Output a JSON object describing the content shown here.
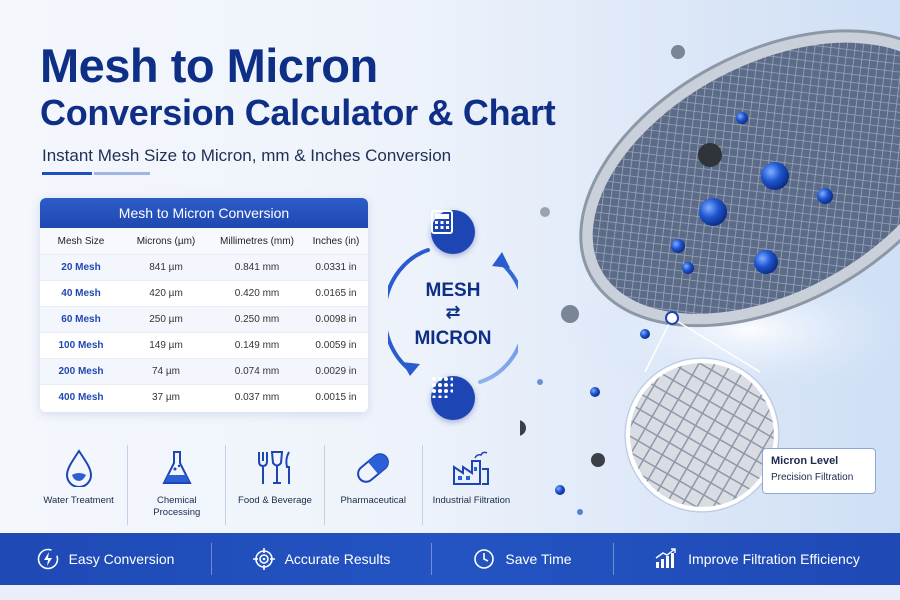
{
  "header": {
    "title_line1": "Mesh to Micron",
    "title_line2": "Conversion Calculator & Chart",
    "subtitle": "Instant Mesh Size to Micron, mm & Inches Conversion"
  },
  "table": {
    "title": "Mesh to Micron Conversion",
    "columns": [
      "Mesh Size",
      "Microns (µm)",
      "Millimetres (mm)",
      "Inches (in)"
    ],
    "rows": [
      [
        "20 Mesh",
        "841 µm",
        "0.841 mm",
        "0.0331 in"
      ],
      [
        "40 Mesh",
        "420 µm",
        "0.420 mm",
        "0.0165 in"
      ],
      [
        "60 Mesh",
        "250 µm",
        "0.250 mm",
        "0.0098 in"
      ],
      [
        "100 Mesh",
        "149 µm",
        "0.149 mm",
        "0.0059 in"
      ],
      [
        "200 Mesh",
        "74 µm",
        "0.074 mm",
        "0.0029 in"
      ],
      [
        "400 Mesh",
        "37 µm",
        "0.037 mm",
        "0.0015 in"
      ]
    ]
  },
  "cycle": {
    "top_word": "MESH",
    "swap_symbol": "⇄",
    "bottom_word": "MICRON",
    "top_icon": "calculator-icon",
    "bottom_icon": "dot-grid-icon"
  },
  "callout": {
    "line1": "Micron Level",
    "line2": "Precision Filtration"
  },
  "industries": [
    {
      "label": "Water Treatment",
      "icon": "water-drop-icon"
    },
    {
      "label": "Chemical\nProcessing",
      "icon": "flask-icon"
    },
    {
      "label": "Food & Beverage",
      "icon": "cutlery-icon"
    },
    {
      "label": "Pharmaceutical",
      "icon": "capsule-icon"
    },
    {
      "label": "Industrial Filtration",
      "icon": "factory-icon"
    }
  ],
  "features": [
    {
      "label": "Easy Conversion",
      "icon": "lightning-icon"
    },
    {
      "label": "Accurate Results",
      "icon": "target-icon"
    },
    {
      "label": "Save Time",
      "icon": "clock-icon"
    },
    {
      "label": "Improve Filtration Efficiency",
      "icon": "growth-chart-icon"
    }
  ],
  "colors": {
    "brand_blue": "#1d46b4",
    "title_navy": "#0f2f86"
  }
}
